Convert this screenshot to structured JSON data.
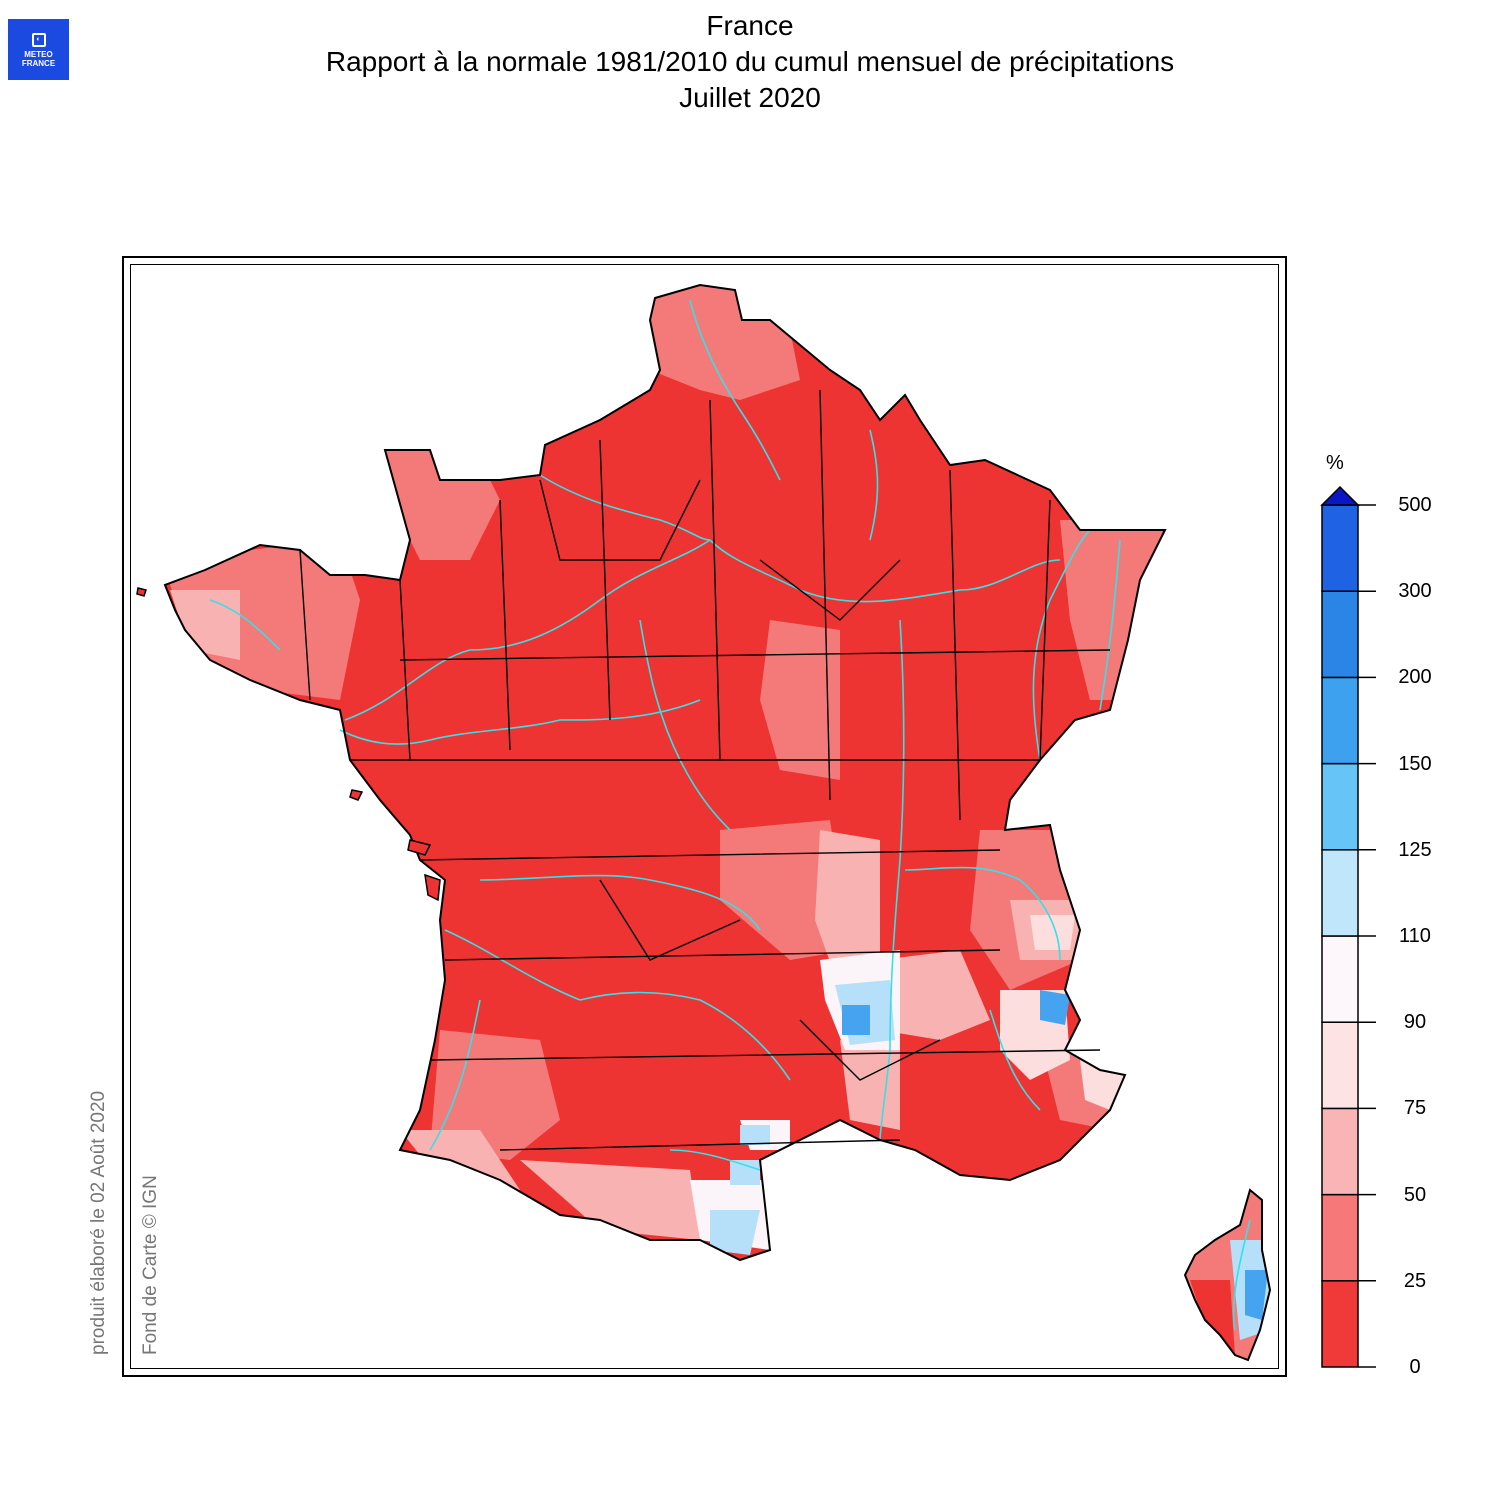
{
  "logo": {
    "line1": "METEO",
    "line2": "FRANCE",
    "icon": "meteo-france-logo-icon"
  },
  "title": {
    "line1": "France",
    "line2": "Rapport à la normale 1981/2010 du cumul mensuel de précipitations",
    "line3": "Juillet 2020"
  },
  "credits": {
    "produced": "produit élaboré le 02 Août 2020",
    "basemap": "Fond de Carte © IGN"
  },
  "legend": {
    "unit": "%",
    "ticks": [
      "0",
      "25",
      "50",
      "75",
      "90",
      "110",
      "125",
      "150",
      "200",
      "300",
      "500"
    ],
    "bin_colors": [
      "#f03a3a",
      "#f77878",
      "#f9b5b5",
      "#fde3e3",
      "#fdf7fb",
      "#bfe6fb",
      "#66c5f6",
      "#3ea1ef",
      "#2a85e6",
      "#1f62e3"
    ],
    "over_color": "#0b17c4"
  },
  "map": {
    "regions_colors": {
      "dominant": "#ee3333",
      "light_red": "#f47a7a",
      "pink": "#f9b2b2",
      "pale": "#fcdede",
      "white": "#fbf5f9",
      "light_blue": "#b6dffa",
      "blue": "#46a3ef",
      "river": "#37e0e6",
      "border": "#000000"
    }
  }
}
